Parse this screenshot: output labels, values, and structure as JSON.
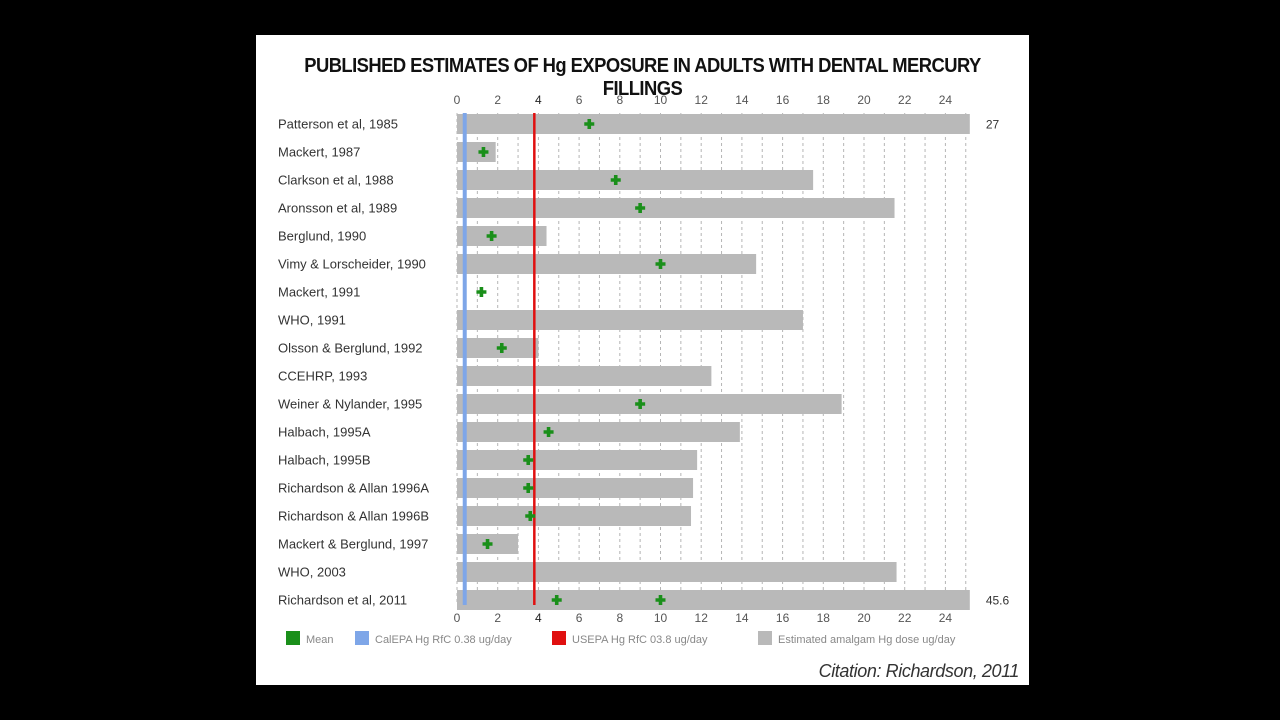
{
  "title": "PUBLISHED ESTIMATES OF Hg EXPOSURE IN ADULTS WITH DENTAL MERCURY FILLINGS",
  "citation": "Citation: Richardson, 2011",
  "colors": {
    "bar": "#b9b9b9",
    "mean": "#1a8f1a",
    "calepa": "#7ea6e8",
    "usepa": "#e01010",
    "background": "#000000",
    "panel": "#ffffff"
  },
  "chart_data": {
    "type": "bar",
    "orientation": "horizontal",
    "xlim": [
      0,
      25.2
    ],
    "x_ticks": [
      0,
      2,
      4,
      6,
      8,
      10,
      12,
      14,
      16,
      18,
      20,
      22,
      24
    ],
    "grid": true,
    "legend_position": "bottom",
    "reference_lines": [
      {
        "name": "CalEPA Hg RfC 0.38 ug/day",
        "value": 0.38,
        "color": "#7ea6e8"
      },
      {
        "name": "USEPA Hg RfC 03.8 ug/day",
        "value": 3.8,
        "color": "#e01010"
      }
    ],
    "legend": [
      {
        "label": "Mean",
        "color": "#1a8f1a"
      },
      {
        "label": "CalEPA Hg RfC 0.38 ug/day",
        "color": "#7ea6e8"
      },
      {
        "label": "USEPA Hg RfC 03.8 ug/day",
        "color": "#e01010"
      },
      {
        "label": "Estimated amalgam Hg dose ug/day",
        "color": "#b9b9b9"
      }
    ],
    "studies": [
      {
        "label": "Patterson et al, 1985",
        "start": 0,
        "end": 27,
        "means": [
          6.5
        ],
        "end_label": "27"
      },
      {
        "label": "Mackert, 1987",
        "start": 0,
        "end": 1.9,
        "means": [
          1.3
        ]
      },
      {
        "label": "Clarkson et al, 1988",
        "start": 0,
        "end": 17.5,
        "means": [
          7.8
        ]
      },
      {
        "label": "Aronsson et al, 1989",
        "start": 0,
        "end": 21.5,
        "means": [
          9.0
        ]
      },
      {
        "label": "Berglund, 1990",
        "start": 0,
        "end": 4.4,
        "means": [
          1.7
        ]
      },
      {
        "label": "Vimy & Lorscheider, 1990",
        "start": 0,
        "end": 14.7,
        "means": [
          10.0
        ]
      },
      {
        "label": "Mackert, 1991",
        "start": 0,
        "end": 0,
        "means": [
          1.2
        ]
      },
      {
        "label": "WHO, 1991",
        "start": 0,
        "end": 17.0,
        "means": []
      },
      {
        "label": "Olsson & Berglund, 1992",
        "start": 0,
        "end": 4.0,
        "means": [
          2.2
        ]
      },
      {
        "label": "CCEHRP, 1993",
        "start": 0,
        "end": 12.5,
        "means": []
      },
      {
        "label": "Weiner & Nylander, 1995",
        "start": 0,
        "end": 18.9,
        "means": [
          9.0
        ]
      },
      {
        "label": "Halbach, 1995A",
        "start": 0,
        "end": 13.9,
        "means": [
          4.5
        ]
      },
      {
        "label": "Halbach, 1995B",
        "start": 0,
        "end": 11.8,
        "means": [
          3.5
        ]
      },
      {
        "label": "Richardson & Allan 1996A",
        "start": 0,
        "end": 11.6,
        "means": [
          3.5
        ]
      },
      {
        "label": "Richardson & Allan 1996B",
        "start": 0,
        "end": 11.5,
        "means": [
          3.6
        ]
      },
      {
        "label": "Mackert & Berglund, 1997",
        "start": 0,
        "end": 3.0,
        "means": [
          1.5
        ]
      },
      {
        "label": "WHO, 2003",
        "start": 0,
        "end": 21.6,
        "means": []
      },
      {
        "label": "Richardson et al, 2011",
        "start": 0,
        "end": 45.6,
        "means": [
          4.9,
          10.0
        ],
        "end_label": "45.6"
      }
    ]
  }
}
